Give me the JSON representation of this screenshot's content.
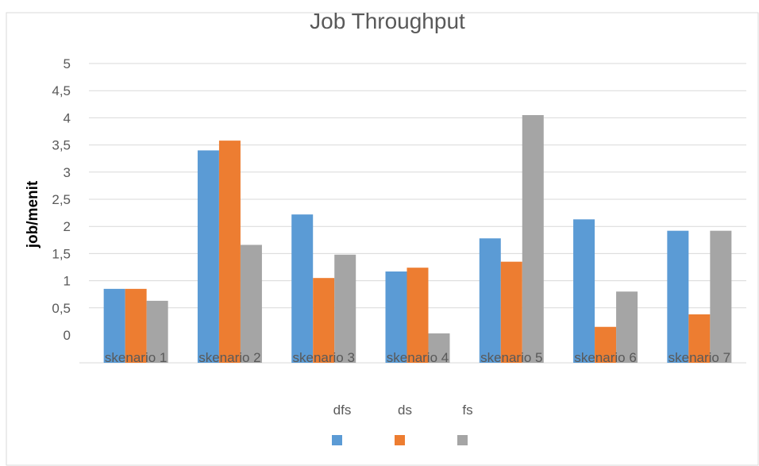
{
  "chart_data": {
    "type": "bar",
    "title": "Job Throughput",
    "xlabel": "",
    "ylabel": "job/menit",
    "ylim": [
      0,
      5
    ],
    "yticks": [
      "0",
      "0,5",
      "1",
      "1,5",
      "2",
      "2,5",
      "3",
      "3,5",
      "4",
      "4,5",
      "5"
    ],
    "grid": true,
    "legend_position": "bottom",
    "categories": [
      "skenario 1",
      "skenario 2",
      "skenario 3",
      "skenario 4",
      "skenario 5",
      "skenario 6",
      "skenario 7"
    ],
    "series": [
      {
        "name": "dfs",
        "color": "#5b9bd5",
        "values": [
          0.85,
          3.4,
          2.22,
          1.17,
          1.78,
          2.13,
          1.92
        ]
      },
      {
        "name": "ds",
        "color": "#ed7d31",
        "values": [
          0.85,
          3.58,
          1.05,
          1.24,
          1.35,
          0.15,
          0.38
        ]
      },
      {
        "name": "fs",
        "color": "#a5a5a5",
        "values": [
          0.63,
          1.66,
          1.48,
          0.03,
          4.05,
          0.8,
          1.92
        ]
      }
    ]
  }
}
